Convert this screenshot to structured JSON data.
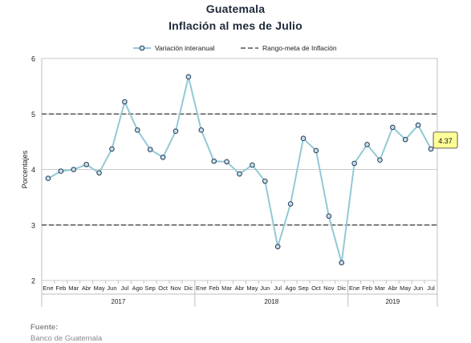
{
  "chart_data": {
    "type": "line",
    "title": "Guatemala",
    "subtitle": "Inflación al mes de Julio",
    "ylabel": "Porcentajes",
    "xlabel": "",
    "ylim": [
      2,
      6
    ],
    "yticks": [
      2,
      3,
      4,
      5,
      6
    ],
    "grid": true,
    "legend_position": "top",
    "categories": [
      "Ene",
      "Feb",
      "Mar",
      "Abr",
      "May",
      "Jun",
      "Jul",
      "Ago",
      "Sep",
      "Oct",
      "Nov",
      "Dic",
      "Ene",
      "Feb",
      "Mar",
      "Abr",
      "May",
      "Jun",
      "Jul",
      "Ago",
      "Sep",
      "Oct",
      "Nov",
      "Dic",
      "Ene",
      "Feb",
      "Mar",
      "Abr",
      "May",
      "Jun",
      "Jul"
    ],
    "groups": [
      {
        "label": "2017",
        "count": 12
      },
      {
        "label": "2018",
        "count": 12
      },
      {
        "label": "2019",
        "count": 7
      }
    ],
    "series": [
      {
        "name": "Variación interanual",
        "color": "#92c9d6",
        "values": [
          3.84,
          3.97,
          4.0,
          4.09,
          3.94,
          4.37,
          5.22,
          4.71,
          4.36,
          4.22,
          4.69,
          5.67,
          4.71,
          4.15,
          4.14,
          3.92,
          4.08,
          3.79,
          2.61,
          3.38,
          4.56,
          4.34,
          3.16,
          2.32,
          4.11,
          4.45,
          4.17,
          4.76,
          4.54,
          4.8,
          4.37
        ]
      }
    ],
    "reference_lines": {
      "name": "Rango-meta de Inflación",
      "color": "#555555",
      "values": [
        3,
        5
      ]
    },
    "annotation": {
      "label": "4.37",
      "color": "#ffff99"
    }
  },
  "source": {
    "label": "Fuente:",
    "text": "Banco de Guatemala"
  }
}
